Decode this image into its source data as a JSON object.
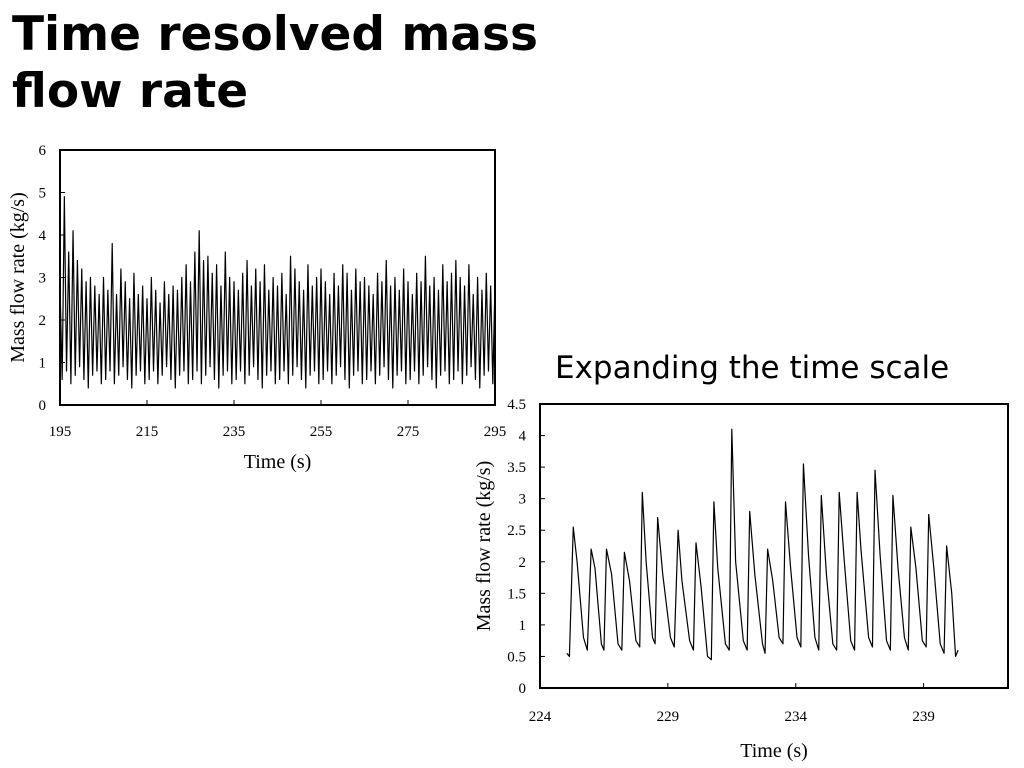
{
  "title": "Time resolved mass flow rate",
  "caption": "Expanding the time scale",
  "chart_data": [
    {
      "type": "line",
      "xlabel": "Time (s)",
      "ylabel": "Mass flow rate (kg/s)",
      "color": "#000000",
      "xlim": [
        195,
        295
      ],
      "xticks": [
        195,
        215,
        235,
        255,
        275,
        295
      ],
      "ylim": [
        0,
        6
      ],
      "yticks": [
        0,
        1,
        2,
        3,
        4,
        5,
        6
      ],
      "x": [
        195,
        195.5,
        196,
        196.5,
        197,
        197.5,
        198,
        198.5,
        199,
        199.5,
        200,
        200.5,
        201,
        201.5,
        202,
        202.5,
        203,
        203.5,
        204,
        204.5,
        205,
        205.5,
        206,
        206.5,
        207,
        207.5,
        208,
        208.5,
        209,
        209.5,
        210,
        210.5,
        211,
        211.5,
        212,
        212.5,
        213,
        213.5,
        214,
        214.5,
        215,
        215.5,
        216,
        216.5,
        217,
        217.5,
        218,
        218.5,
        219,
        219.5,
        220,
        220.5,
        221,
        221.5,
        222,
        222.5,
        223,
        223.5,
        224,
        224.5,
        225,
        225.5,
        226,
        226.5,
        227,
        227.5,
        228,
        228.5,
        229,
        229.5,
        230,
        230.5,
        231,
        231.5,
        232,
        232.5,
        233,
        233.5,
        234,
        234.5,
        235,
        235.5,
        236,
        236.5,
        237,
        237.5,
        238,
        238.5,
        239,
        239.5,
        240,
        240.5,
        241,
        241.5,
        242,
        242.5,
        243,
        243.5,
        244,
        244.5,
        245,
        245.5,
        246,
        246.5,
        247,
        247.5,
        248,
        248.5,
        249,
        249.5,
        250,
        250.5,
        251,
        251.5,
        252,
        252.5,
        253,
        253.5,
        254,
        254.5,
        255,
        255.5,
        256,
        256.5,
        257,
        257.5,
        258,
        258.5,
        259,
        259.5,
        260,
        260.5,
        261,
        261.5,
        262,
        262.5,
        263,
        263.5,
        264,
        264.5,
        265,
        265.5,
        266,
        266.5,
        267,
        267.5,
        268,
        268.5,
        269,
        269.5,
        270,
        270.5,
        271,
        271.5,
        272,
        272.5,
        273,
        273.5,
        274,
        274.5,
        275,
        275.5,
        276,
        276.5,
        277,
        277.5,
        278,
        278.5,
        279,
        279.5,
        280,
        280.5,
        281,
        281.5,
        282,
        282.5,
        283,
        283.5,
        284,
        284.5,
        285,
        285.5,
        286,
        286.5,
        287,
        287.5,
        288,
        288.5,
        289,
        289.5,
        290,
        290.5,
        291,
        291.5,
        292,
        292.5,
        293,
        293.5,
        294,
        294.5,
        295
      ],
      "values": [
        2.8,
        0.6,
        4.9,
        0.8,
        3.6,
        0.5,
        4.1,
        0.7,
        3.4,
        0.9,
        3.2,
        0.6,
        2.9,
        0.4,
        3.0,
        0.7,
        2.8,
        0.8,
        2.6,
        0.5,
        3.0,
        0.6,
        2.7,
        0.8,
        3.8,
        0.5,
        2.6,
        0.7,
        3.2,
        0.9,
        2.9,
        0.6,
        2.5,
        0.4,
        3.1,
        0.7,
        2.6,
        0.8,
        2.8,
        0.5,
        2.5,
        0.6,
        3.0,
        0.8,
        2.7,
        0.5,
        2.4,
        0.7,
        2.9,
        0.9,
        2.6,
        0.6,
        2.8,
        0.4,
        2.7,
        0.7,
        3.0,
        0.8,
        3.3,
        0.5,
        2.9,
        0.6,
        3.6,
        0.8,
        4.1,
        0.5,
        3.4,
        0.7,
        3.5,
        0.9,
        3.1,
        0.6,
        3.3,
        0.4,
        2.8,
        0.7,
        3.6,
        0.8,
        3.0,
        0.5,
        2.9,
        0.6,
        2.7,
        0.8,
        3.1,
        0.5,
        3.4,
        0.7,
        2.8,
        0.9,
        3.2,
        0.6,
        2.9,
        0.4,
        3.3,
        0.7,
        2.7,
        0.8,
        3.0,
        0.5,
        2.8,
        0.6,
        3.1,
        0.8,
        2.6,
        0.5,
        3.5,
        0.7,
        3.2,
        0.9,
        2.9,
        0.6,
        2.7,
        0.4,
        3.3,
        0.7,
        2.8,
        0.8,
        3.0,
        0.5,
        3.2,
        0.6,
        2.9,
        0.8,
        2.6,
        0.5,
        3.1,
        0.7,
        2.8,
        0.9,
        3.3,
        0.6,
        3.1,
        0.4,
        2.7,
        0.7,
        3.2,
        0.8,
        2.9,
        0.5,
        3.0,
        0.6,
        2.8,
        0.8,
        2.6,
        0.5,
        3.1,
        0.7,
        2.9,
        0.9,
        3.4,
        0.6,
        2.8,
        0.4,
        3.0,
        0.7,
        2.7,
        0.8,
        3.2,
        0.5,
        2.9,
        0.6,
        2.6,
        0.8,
        3.1,
        0.5,
        2.9,
        0.7,
        3.5,
        0.9,
        2.8,
        0.6,
        3.0,
        0.4,
        2.7,
        0.7,
        3.3,
        0.8,
        2.9,
        0.5,
        3.1,
        0.6,
        3.4,
        0.8,
        3.0,
        0.5,
        2.8,
        0.7,
        3.3,
        0.9,
        2.6,
        0.6,
        3.0,
        0.4,
        2.7,
        0.7,
        3.1,
        0.8,
        2.8,
        0.5,
        2.9
      ]
    },
    {
      "type": "line",
      "xlabel": "Time (s)",
      "ylabel": "Mass flow rate (kg/s)",
      "color": "#000000",
      "xlim": [
        224,
        242.3
      ],
      "xticks": [
        224,
        229,
        234,
        239
      ],
      "ylim": [
        0,
        4.5
      ],
      "yticks": [
        0,
        0.5,
        1,
        1.5,
        2,
        2.5,
        3,
        3.5,
        4,
        4.5
      ],
      "x": [
        225.05,
        225.15,
        225.3,
        225.45,
        225.7,
        225.85,
        226.0,
        226.15,
        226.4,
        226.5,
        226.6,
        226.8,
        227.05,
        227.2,
        227.3,
        227.5,
        227.75,
        227.9,
        228.0,
        228.15,
        228.4,
        228.5,
        228.6,
        228.8,
        229.1,
        229.25,
        229.4,
        229.55,
        229.85,
        230.0,
        230.1,
        230.3,
        230.55,
        230.7,
        230.8,
        230.95,
        231.25,
        231.4,
        231.5,
        231.65,
        231.95,
        232.1,
        232.2,
        232.4,
        232.7,
        232.8,
        232.9,
        233.1,
        233.35,
        233.5,
        233.6,
        233.8,
        234.05,
        234.2,
        234.3,
        234.5,
        234.75,
        234.9,
        235.0,
        235.2,
        235.45,
        235.6,
        235.7,
        235.9,
        236.15,
        236.3,
        236.4,
        236.55,
        236.85,
        237.0,
        237.1,
        237.3,
        237.55,
        237.7,
        237.8,
        238.0,
        238.25,
        238.4,
        238.5,
        238.7,
        238.95,
        239.1,
        239.2,
        239.4,
        239.65,
        239.8,
        239.9,
        240.1,
        240.25,
        240.35
      ],
      "values": [
        0.55,
        0.5,
        2.55,
        2.0,
        0.8,
        0.6,
        2.2,
        1.9,
        0.7,
        0.6,
        2.2,
        1.8,
        0.7,
        0.6,
        2.15,
        1.7,
        0.75,
        0.65,
        3.1,
        2.0,
        0.8,
        0.7,
        2.7,
        1.8,
        0.8,
        0.65,
        2.5,
        1.7,
        0.75,
        0.6,
        2.3,
        1.6,
        0.5,
        0.45,
        2.95,
        1.9,
        0.7,
        0.6,
        4.1,
        2.0,
        0.75,
        0.6,
        2.8,
        1.8,
        0.7,
        0.55,
        2.2,
        1.7,
        0.8,
        0.7,
        2.95,
        1.9,
        0.8,
        0.65,
        3.55,
        2.1,
        0.8,
        0.6,
        3.05,
        1.8,
        0.7,
        0.6,
        3.1,
        2.0,
        0.75,
        0.6,
        3.1,
        2.2,
        0.8,
        0.65,
        3.45,
        2.1,
        0.75,
        0.6,
        3.05,
        1.9,
        0.8,
        0.6,
        2.55,
        1.9,
        0.75,
        0.65,
        2.75,
        1.9,
        0.7,
        0.55,
        2.25,
        1.5,
        0.5,
        0.6
      ]
    }
  ]
}
